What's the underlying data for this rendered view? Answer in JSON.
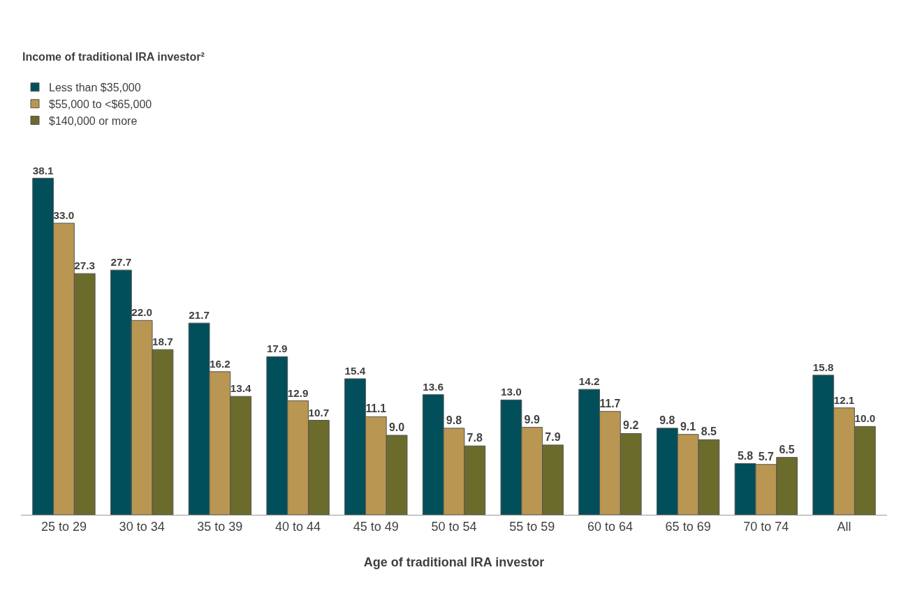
{
  "chart_data": {
    "type": "bar",
    "legend_title": "Income of traditional IRA investor²",
    "xlabel": "Age of traditional IRA investor",
    "categories": [
      "25 to 29",
      "30 to 34",
      "35 to 39",
      "40 to 44",
      "45 to 49",
      "50 to 54",
      "55 to 59",
      "60 to 64",
      "65 to 69",
      "70 to 74",
      "All"
    ],
    "series": [
      {
        "name": "Less than $35,000",
        "color": "#004f5a",
        "values": [
          38.1,
          27.7,
          21.7,
          17.9,
          15.4,
          13.6,
          13.0,
          14.2,
          9.8,
          5.8,
          15.8
        ],
        "value_labels": [
          "38.1",
          "27.7",
          "21.7",
          "17.9",
          "15.4",
          "13.6",
          "13.0",
          "14.2",
          "9.8",
          "5.8",
          "15.8"
        ]
      },
      {
        "name": "$55,000 to <$65,000",
        "color": "#b99651",
        "values": [
          33.0,
          22.0,
          16.2,
          12.9,
          11.1,
          9.8,
          9.9,
          11.7,
          9.1,
          5.7,
          12.1
        ],
        "value_labels": [
          "33.0",
          "22.0",
          "16.2",
          "12.9",
          "11.1",
          "9.8",
          "9.9",
          "11.7",
          "9.1",
          "5.7",
          "12.1"
        ]
      },
      {
        "name": "$140,000 or more",
        "color": "#6b6b2c",
        "values": [
          27.3,
          18.7,
          13.4,
          10.7,
          9.0,
          7.8,
          7.9,
          9.2,
          8.5,
          6.5,
          10.0
        ],
        "value_labels": [
          "27.3",
          "18.7",
          "13.4",
          "10.7",
          "9.0",
          "7.8",
          "7.9",
          "9.2",
          "8.5",
          "6.5",
          "10.0"
        ]
      }
    ],
    "tick_labels": "x",
    "legend": "top left"
  }
}
